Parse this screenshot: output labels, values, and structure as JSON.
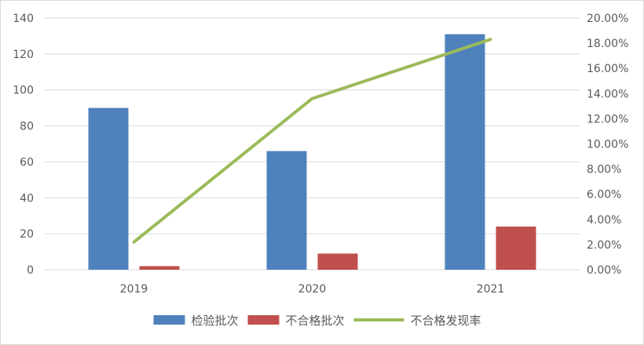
{
  "chart_data": {
    "type": "bar",
    "categories": [
      "2019",
      "2020",
      "2021"
    ],
    "series": [
      {
        "name": "检验批次",
        "kind": "bar",
        "axis": "left",
        "color": "#4f81bd",
        "values": [
          90,
          66,
          131
        ]
      },
      {
        "name": "不合格批次",
        "kind": "bar",
        "axis": "left",
        "color": "#c0504d",
        "values": [
          2,
          9,
          24
        ]
      },
      {
        "name": "不合格发现率",
        "kind": "line",
        "axis": "right",
        "color": "#9bbb59",
        "values": [
          0.022,
          0.136,
          0.183
        ]
      }
    ],
    "y_left": {
      "ylim": [
        0,
        140
      ],
      "ticks": [
        0,
        20,
        40,
        60,
        80,
        100,
        120,
        140
      ],
      "tick_labels": [
        "0",
        "20",
        "40",
        "60",
        "80",
        "100",
        "120",
        "140"
      ]
    },
    "y_right": {
      "ylim": [
        0,
        0.2
      ],
      "ticks": [
        0,
        0.02,
        0.04,
        0.06,
        0.08,
        0.1,
        0.12,
        0.14,
        0.16,
        0.18,
        0.2
      ],
      "tick_labels": [
        "0.00%",
        "2.00%",
        "4.00%",
        "6.00%",
        "8.00%",
        "10.00%",
        "12.00%",
        "14.00%",
        "16.00%",
        "18.00%",
        "20.00%"
      ]
    },
    "grid": true,
    "legend": "bottom",
    "colors": {
      "gridline": "#d9d9d9",
      "axis_text": "#595959"
    }
  }
}
